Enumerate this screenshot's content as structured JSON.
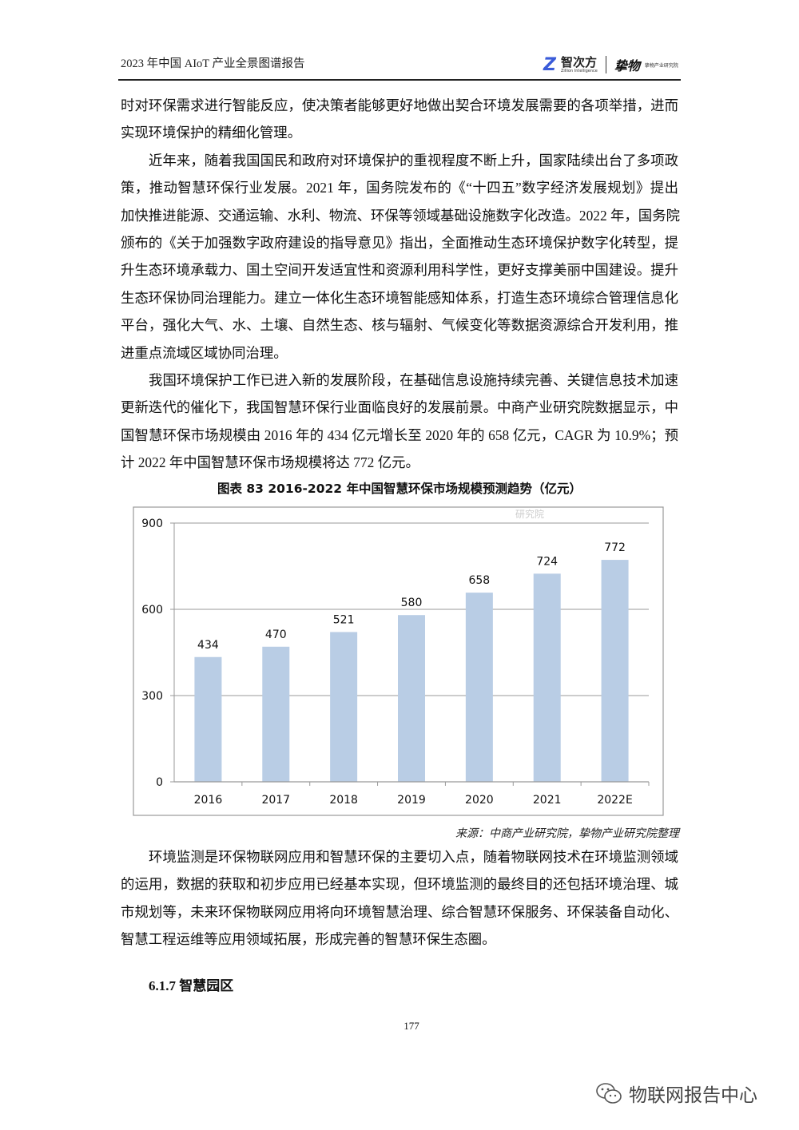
{
  "header": {
    "title": "2023 年中国 AIoT 产业全景图谱报告",
    "logo_primary_cn": "智次方",
    "logo_primary_en": "Zillion Intelligence",
    "logo_secondary_mark": "挚物",
    "logo_secondary_text": "挚物产业研究院"
  },
  "paragraphs_top": [
    {
      "indent": false,
      "lines": [
        "时对环保需求进行智能反应，使决策者能够更好地做出契合环境发展需要的各项举措，进而",
        "实现环境保护的精细化管理。"
      ]
    },
    {
      "indent": true,
      "lines": [
        "近年来，随着我国国民和政府对环境保护的重视程度不断上升，国家陆续出台了多项政",
        "策，推动智慧环保行业发展。2021 年，国务院发布的《“十四五”数字经济发展规划》提出",
        "加快推进能源、交通运输、水利、物流、环保等领域基础设施数字化改造。2022 年，国务院",
        "颁布的《关于加强数字政府建设的指导意见》指出，全面推动生态环境保护数字化转型，提",
        "升生态环境承载力、国土空间开发适宜性和资源利用科学性，更好支撑美丽中国建设。提升",
        "生态环保协同治理能力。建立一体化生态环境智能感知体系，打造生态环境综合管理信息化",
        "平台，强化大气、水、土壤、自然生态、核与辐射、气候变化等数据资源综合开发利用，推",
        "进重点流域区域协同治理。"
      ]
    },
    {
      "indent": true,
      "lines": [
        "我国环境保护工作已进入新的发展阶段，在基础信息设施持续完善、关键信息技术加速",
        "更新迭代的催化下，我国智慧环保行业面临良好的发展前景。中商产业研究院数据显示，中",
        "国智慧环保市场规模由 2016 年的 434 亿元增长至 2020 年的 658 亿元，CAGR 为 10.9%；预",
        "计 2022 年中国智慧环保市场规模将达 772 亿元。"
      ]
    }
  ],
  "figure": {
    "caption": "图表 83   2016-2022 年中国智慧环保市场规模预测趋势（亿元）",
    "source": "来源：中商产业研究院，挚物产业研究院整理",
    "watermark": "研究院"
  },
  "chart_data": {
    "type": "bar",
    "title": "",
    "categories": [
      "2016",
      "2017",
      "2018",
      "2019",
      "2020",
      "2021",
      "2022E"
    ],
    "values": [
      434,
      470,
      521,
      580,
      658,
      724,
      772
    ],
    "ylim": [
      0,
      900
    ],
    "yticks": [
      0,
      300,
      600,
      900
    ],
    "grid": true,
    "data_labels": true,
    "bar_color": "#b9cde5"
  },
  "paragraphs_bottom": [
    {
      "indent": true,
      "lines": [
        "环境监测是环保物联网应用和智慧环保的主要切入点，随着物联网技术在环境监测领域",
        "的运用，数据的获取和初步应用已经基本实现，但环境监测的最终目的还包括环境治理、城",
        "市规划等，未来环保物联网应用将向环境智慧治理、综合智慧环保服务、环保装备自动化、",
        "智慧工程运维等应用领域拓展，形成完善的智慧环保生态圈。"
      ]
    }
  ],
  "section_heading": "6.1.7  智慧园区",
  "page_number": "177",
  "bottom_watermark": "物联网报告中心"
}
